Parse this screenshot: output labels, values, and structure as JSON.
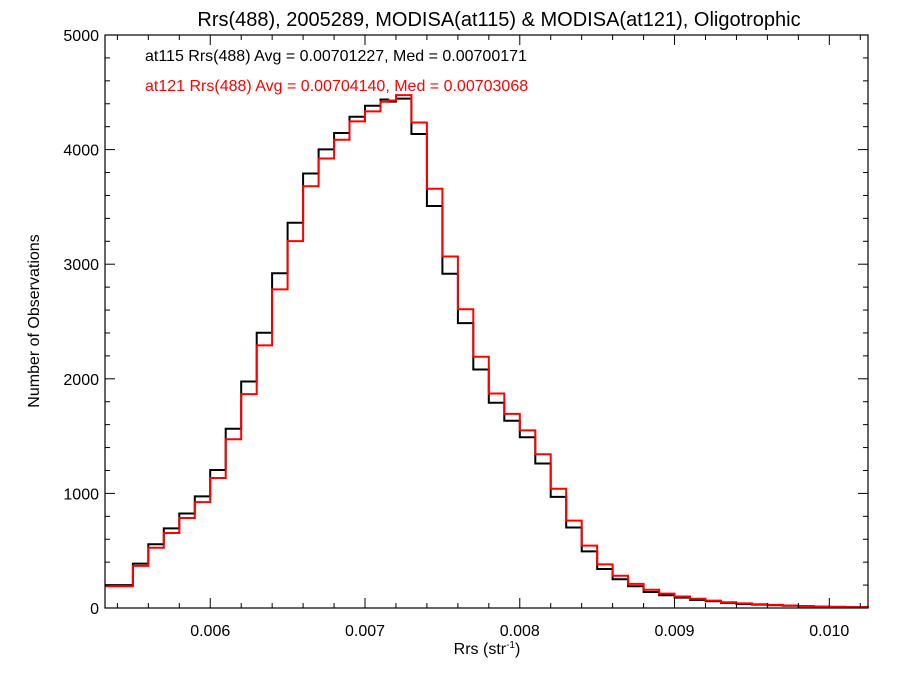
{
  "chart_data": {
    "type": "line",
    "title": "Rrs(488), 2005289, MODISA(at115) & MODISA(at121), Oligotrophic",
    "xlabel": "Rrs (str",
    "xlabel_sup": "-1",
    "xlabel_end": ")",
    "ylabel": "Number of Observations",
    "xlim": [
      0.00532,
      0.01025
    ],
    "ylim": [
      0,
      5000
    ],
    "xticks": [
      0.006,
      0.007,
      0.008,
      0.009,
      0.01
    ],
    "xtick_labels": [
      "0.006",
      "0.007",
      "0.008",
      "0.009",
      "0.010"
    ],
    "yticks": [
      0,
      1000,
      2000,
      3000,
      4000,
      5000
    ],
    "ytick_labels": [
      "0",
      "1000",
      "2000",
      "3000",
      "4000",
      "5000"
    ],
    "grid": false,
    "annotations": [
      {
        "text": "at115 Rrs(488) Avg = 0.00701227, Med = 0.00700171",
        "color": "#000000"
      },
      {
        "text": "at121 Rrs(488) Avg = 0.00704140, Med = 0.00703068",
        "color": "#ff0000"
      }
    ],
    "series": [
      {
        "name": "at115",
        "color": "#000000",
        "x": [
          0.00532,
          0.0055,
          0.0056,
          0.0057,
          0.0058,
          0.0059,
          0.006,
          0.0061,
          0.0062,
          0.0063,
          0.0064,
          0.0065,
          0.0066,
          0.0067,
          0.0068,
          0.0069,
          0.007,
          0.0071,
          0.00715,
          0.0072,
          0.0073,
          0.0074,
          0.0075,
          0.0076,
          0.0077,
          0.0078,
          0.0079,
          0.008,
          0.0081,
          0.0082,
          0.0083,
          0.0084,
          0.0085,
          0.0086,
          0.0087,
          0.0088,
          0.0089,
          0.009,
          0.0091,
          0.0092,
          0.0093,
          0.0094,
          0.0095,
          0.0096,
          0.0097,
          0.0098,
          0.0099,
          0.01,
          0.0101,
          0.01025
        ],
        "y": [
          200,
          390,
          560,
          690,
          830,
          980,
          1200,
          1550,
          1970,
          2380,
          2900,
          3360,
          3760,
          4000,
          4160,
          4270,
          4380,
          4440,
          4460,
          4410,
          4100,
          3500,
          2900,
          2480,
          2070,
          1780,
          1640,
          1500,
          1250,
          960,
          700,
          490,
          340,
          250,
          190,
          140,
          110,
          90,
          70,
          60,
          45,
          35,
          30,
          25,
          20,
          15,
          12,
          10,
          8,
          5
        ]
      },
      {
        "name": "at121",
        "color": "#ff0000",
        "x": [
          0.00532,
          0.0055,
          0.0056,
          0.0057,
          0.0058,
          0.0059,
          0.006,
          0.0061,
          0.0062,
          0.0063,
          0.0064,
          0.0065,
          0.0066,
          0.0067,
          0.0068,
          0.0069,
          0.007,
          0.0071,
          0.00715,
          0.0072,
          0.0073,
          0.0074,
          0.0075,
          0.0076,
          0.0077,
          0.0078,
          0.0079,
          0.008,
          0.0081,
          0.0082,
          0.0083,
          0.0084,
          0.0085,
          0.0086,
          0.0087,
          0.0088,
          0.0089,
          0.009,
          0.0091,
          0.0092,
          0.0093,
          0.0094,
          0.0095,
          0.0096,
          0.0097,
          0.0098,
          0.0099,
          0.01,
          0.0101,
          0.01025
        ],
        "y": [
          190,
          370,
          530,
          650,
          790,
          930,
          1130,
          1460,
          1860,
          2270,
          2760,
          3200,
          3650,
          3920,
          4100,
          4230,
          4330,
          4420,
          4470,
          4440,
          4200,
          3650,
          3050,
          2600,
          2180,
          1860,
          1700,
          1560,
          1330,
          1030,
          760,
          540,
          380,
          280,
          210,
          160,
          125,
          100,
          80,
          65,
          50,
          40,
          33,
          27,
          22,
          17,
          13,
          10,
          8,
          5
        ]
      }
    ]
  }
}
